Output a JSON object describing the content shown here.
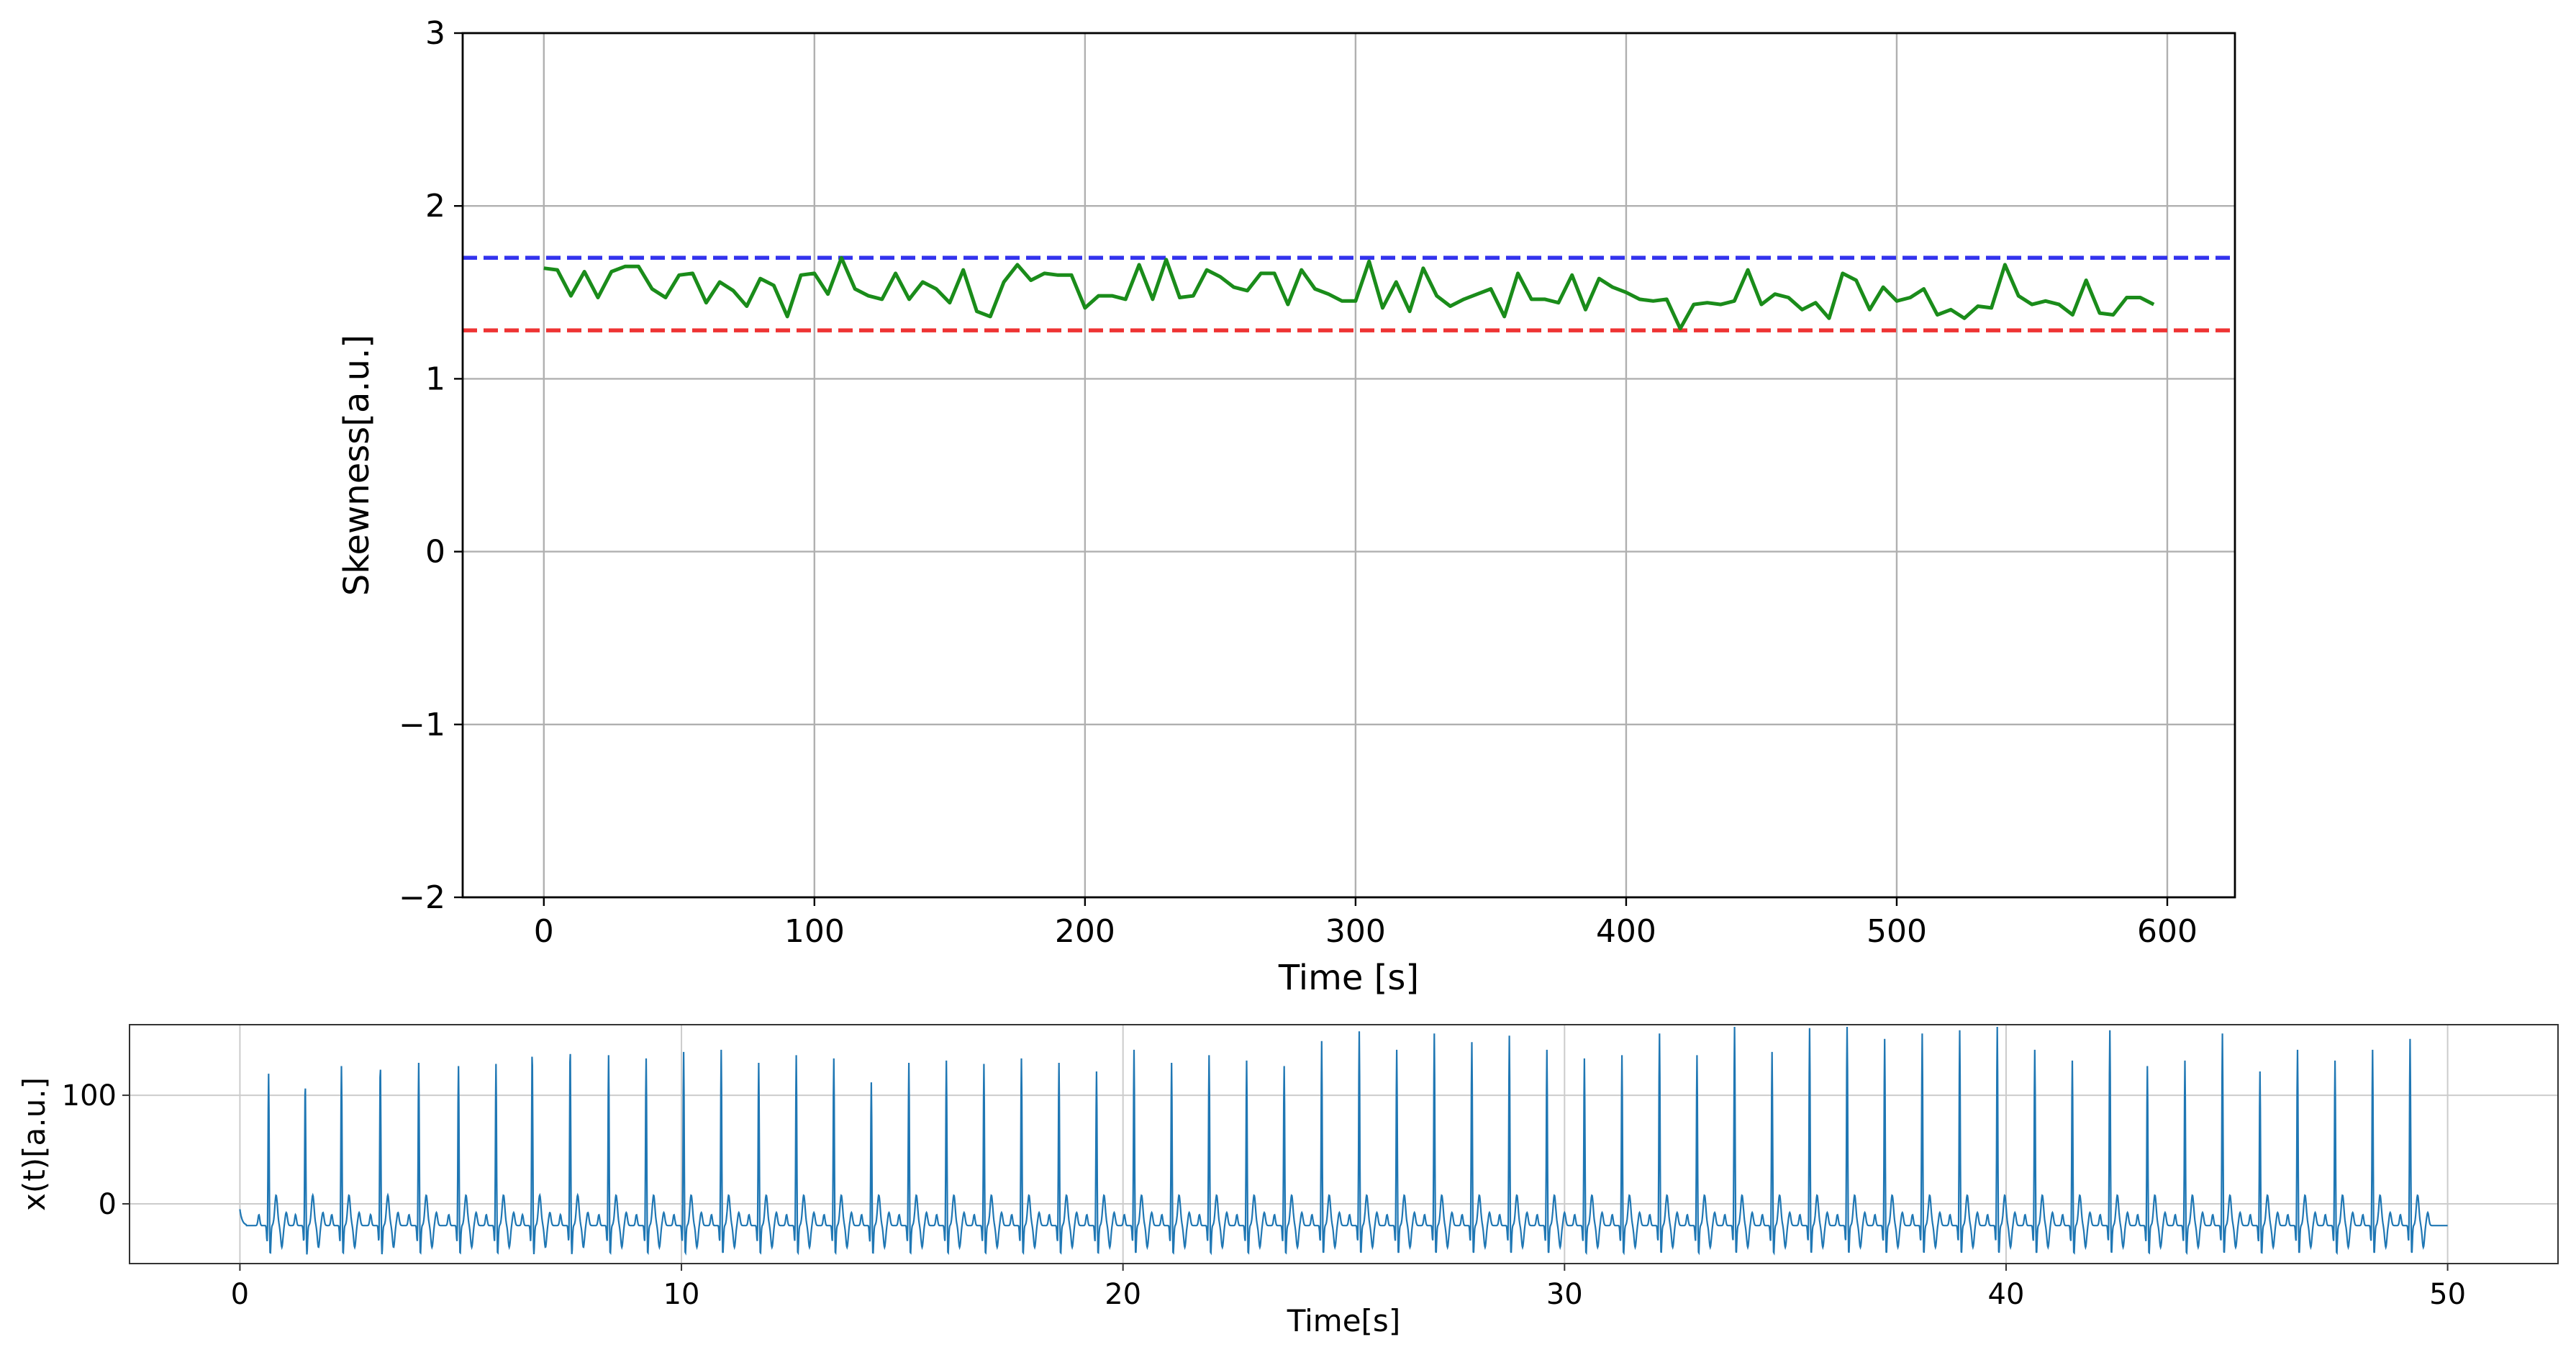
{
  "chart_data": [
    {
      "type": "line",
      "xlabel": "Time [s]",
      "ylabel": "Skewness[a.u.]",
      "xlim": [
        -30,
        625
      ],
      "ylim": [
        -2,
        3
      ],
      "xticks": [
        "0",
        "100",
        "200",
        "300",
        "400",
        "500",
        "600"
      ],
      "yticks": [
        "−2",
        "−1",
        "0",
        "1",
        "2",
        "3"
      ],
      "grid": true,
      "reference_lines": [
        {
          "y": 1.7,
          "color": "#3333ee",
          "style": "dashed"
        },
        {
          "y": 1.28,
          "color": "#ee3333",
          "style": "dashed"
        }
      ],
      "series": [
        {
          "color": "#1a8c1a",
          "x": [
            0,
            5,
            10,
            15,
            20,
            25,
            30,
            35,
            40,
            45,
            50,
            55,
            60,
            65,
            70,
            75,
            80,
            85,
            90,
            95,
            100,
            105,
            110,
            115,
            120,
            125,
            130,
            135,
            140,
            145,
            150,
            155,
            160,
            165,
            170,
            175,
            180,
            185,
            190,
            195,
            200,
            205,
            210,
            215,
            220,
            225,
            230,
            235,
            240,
            245,
            250,
            255,
            260,
            265,
            270,
            275,
            280,
            285,
            290,
            295,
            300,
            305,
            310,
            315,
            320,
            325,
            330,
            335,
            340,
            345,
            350,
            355,
            360,
            365,
            370,
            375,
            380,
            385,
            390,
            395,
            400,
            405,
            410,
            415,
            420,
            425,
            430,
            435,
            440,
            445,
            450,
            455,
            460,
            465,
            470,
            475,
            480,
            485,
            490,
            495,
            500,
            505,
            510,
            515,
            520,
            525,
            530,
            535,
            540,
            545,
            550,
            555,
            560,
            565,
            570,
            575,
            580,
            585,
            590,
            595
          ],
          "y": [
            1.64,
            1.63,
            1.48,
            1.62,
            1.47,
            1.62,
            1.65,
            1.65,
            1.52,
            1.47,
            1.6,
            1.61,
            1.44,
            1.56,
            1.51,
            1.42,
            1.58,
            1.54,
            1.36,
            1.6,
            1.61,
            1.49,
            1.7,
            1.52,
            1.48,
            1.46,
            1.61,
            1.46,
            1.56,
            1.52,
            1.44,
            1.63,
            1.39,
            1.36,
            1.56,
            1.66,
            1.57,
            1.61,
            1.6,
            1.6,
            1.41,
            1.48,
            1.48,
            1.46,
            1.66,
            1.46,
            1.69,
            1.47,
            1.48,
            1.63,
            1.59,
            1.53,
            1.51,
            1.61,
            1.61,
            1.43,
            1.63,
            1.52,
            1.49,
            1.45,
            1.45,
            1.68,
            1.41,
            1.56,
            1.39,
            1.64,
            1.48,
            1.42,
            1.46,
            1.49,
            1.52,
            1.36,
            1.61,
            1.46,
            1.46,
            1.44,
            1.6,
            1.4,
            1.58,
            1.53,
            1.5,
            1.46,
            1.45,
            1.46,
            1.29,
            1.43,
            1.44,
            1.43,
            1.45,
            1.63,
            1.43,
            1.49,
            1.47,
            1.4,
            1.44,
            1.35,
            1.61,
            1.57,
            1.4,
            1.53,
            1.45,
            1.47,
            1.52,
            1.37,
            1.4,
            1.35,
            1.42,
            1.41,
            1.66,
            1.48,
            1.43,
            1.45,
            1.43,
            1.37,
            1.57,
            1.38,
            1.37,
            1.47,
            1.47,
            1.43
          ]
        }
      ]
    },
    {
      "type": "line",
      "xlabel": "Time[s]",
      "ylabel": "x(t)[a.u.]",
      "xlim": [
        -2.5,
        52.5
      ],
      "ylim": [
        -55,
        165
      ],
      "xticks": [
        "0",
        "10",
        "20",
        "30",
        "40",
        "50"
      ],
      "yticks": [
        "0",
        "100"
      ],
      "grid": true,
      "series": [
        {
          "color": "#1f77b4",
          "signal": "ecg",
          "t_start": 0,
          "t_end": 50,
          "beat_times": [
            0.65,
            1.48,
            2.3,
            3.18,
            4.05,
            4.95,
            5.8,
            6.62,
            7.48,
            8.35,
            9.2,
            10.05,
            10.9,
            11.75,
            12.6,
            13.45,
            14.3,
            15.15,
            16.0,
            16.85,
            17.7,
            18.55,
            19.4,
            20.25,
            21.1,
            21.95,
            22.8,
            23.65,
            24.5,
            25.35,
            26.2,
            27.05,
            27.9,
            28.75,
            29.6,
            30.45,
            31.3,
            32.15,
            33.0,
            33.85,
            34.7,
            35.55,
            36.4,
            37.25,
            38.1,
            38.95,
            39.8,
            40.65,
            41.5,
            42.35,
            43.2,
            44.05,
            44.9,
            45.75,
            46.6,
            47.45,
            48.3,
            49.15
          ],
          "beat_peaks": [
            108,
            100,
            115,
            118,
            118,
            115,
            117,
            130,
            133,
            125,
            122,
            128,
            130,
            118,
            125,
            122,
            100,
            118,
            120,
            117,
            122,
            118,
            110,
            130,
            118,
            125,
            120,
            115,
            138,
            147,
            130,
            145,
            137,
            143,
            130,
            122,
            125,
            145,
            125,
            155,
            128,
            150,
            155,
            140,
            145,
            148,
            152,
            130,
            120,
            148,
            115,
            120,
            145,
            110,
            130,
            120,
            130,
            140
          ]
        }
      ]
    }
  ]
}
